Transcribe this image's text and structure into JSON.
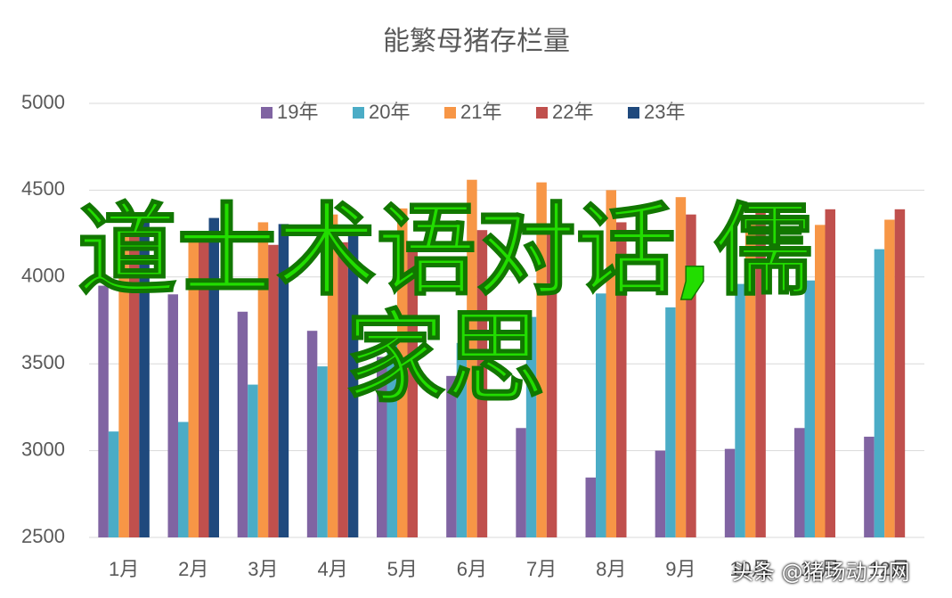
{
  "chart_data": {
    "type": "bar",
    "title": "能繁母猪存栏量",
    "categories": [
      "1月",
      "2月",
      "3月",
      "4月",
      "5月",
      "6月",
      "7月",
      "8月",
      "9月",
      "10月",
      "11月",
      "12月"
    ],
    "series": [
      {
        "name": "19年",
        "color": "#8064a2",
        "values": [
          3950,
          3900,
          3800,
          3690,
          3540,
          3430,
          3130,
          2845,
          3000,
          3010,
          3130,
          3080
        ]
      },
      {
        "name": "20年",
        "color": "#4bacc6",
        "values": [
          3110,
          3165,
          3380,
          3485,
          3620,
          3620,
          3770,
          3905,
          3825,
          3960,
          3980,
          4160
        ]
      },
      {
        "name": "21年",
        "color": "#f79646",
        "values": [
          4250,
          4245,
          4315,
          4360,
          4395,
          4560,
          4545,
          4500,
          4460,
          4350,
          4300,
          4330
        ]
      },
      {
        "name": "22年",
        "color": "#c0504d",
        "values": [
          4270,
          4260,
          4185,
          4200,
          4190,
          4270,
          4290,
          4315,
          4360,
          4380,
          4390,
          4390
        ]
      },
      {
        "name": "23年",
        "color": "#1f497d",
        "values": [
          4360,
          4340,
          4305,
          4280,
          null,
          null,
          null,
          null,
          null,
          null,
          null,
          null
        ]
      }
    ],
    "ylim": [
      2500,
      5000
    ],
    "yticks": [
      2500,
      3000,
      3500,
      4000,
      4500,
      5000
    ],
    "grid": true
  },
  "overlay_text": "道士术语对话,儒家思",
  "watermark": "头条 @猪场动力网"
}
